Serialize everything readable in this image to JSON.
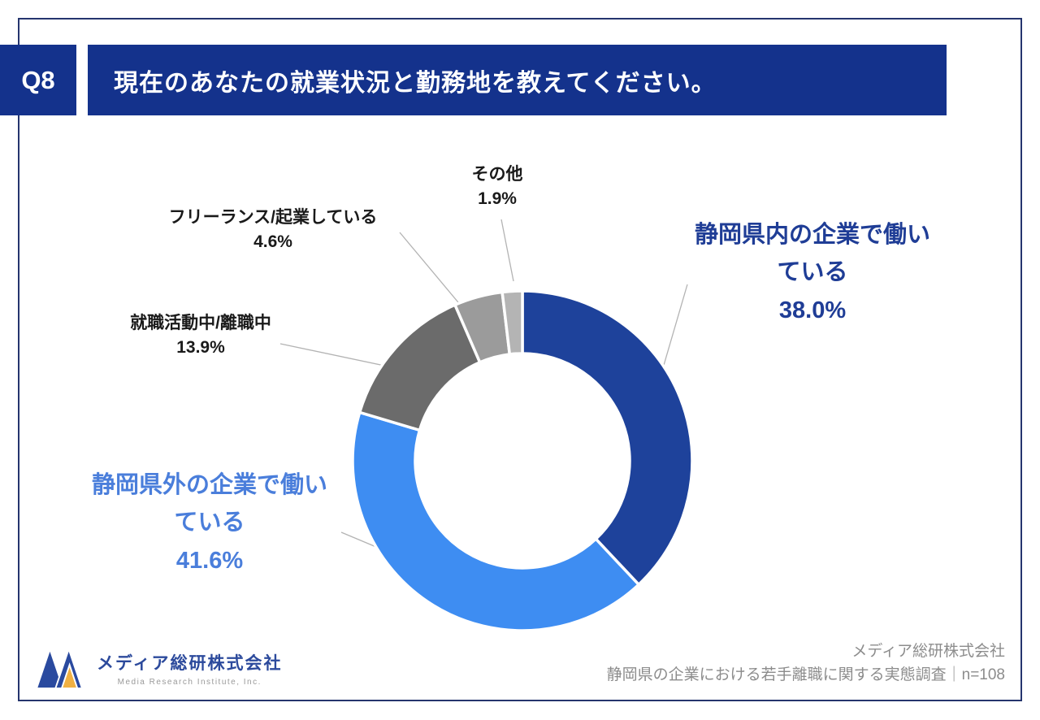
{
  "header": {
    "q_label": "Q8",
    "title": "現在のあなたの就業状況と勤務地を教えてください。"
  },
  "chart_data": {
    "type": "pie",
    "subtype": "donut",
    "title": "現在のあなたの就業状況と勤務地を教えてください。",
    "sample_size_label": "n=108",
    "legend_position": "callouts",
    "segments": [
      {
        "label": "静岡県内の企業で働いている",
        "pct_label": "38.0%",
        "value": 38.0,
        "color": "#1E429B"
      },
      {
        "label": "静岡県外の企業で働いている",
        "pct_label": "41.6%",
        "value": 41.6,
        "color": "#3E8DF2"
      },
      {
        "label": "就職活動中/離職中",
        "pct_label": "13.9%",
        "value": 13.9,
        "color": "#6B6B6B"
      },
      {
        "label": "フリーランス/起業している",
        "pct_label": "4.6%",
        "value": 4.6,
        "color": "#9B9B9B"
      },
      {
        "label": "その他",
        "pct_label": "1.9%",
        "value": 1.9,
        "color": "#B4B4B4"
      }
    ]
  },
  "footer": {
    "logo_text": "メディア総研株式会社",
    "logo_subtext": "Media Research Institute, Inc.",
    "source_line1": "メディア総研株式会社",
    "source_line2": "静岡県の企業における若手離職に関する実態調査｜n=108"
  }
}
